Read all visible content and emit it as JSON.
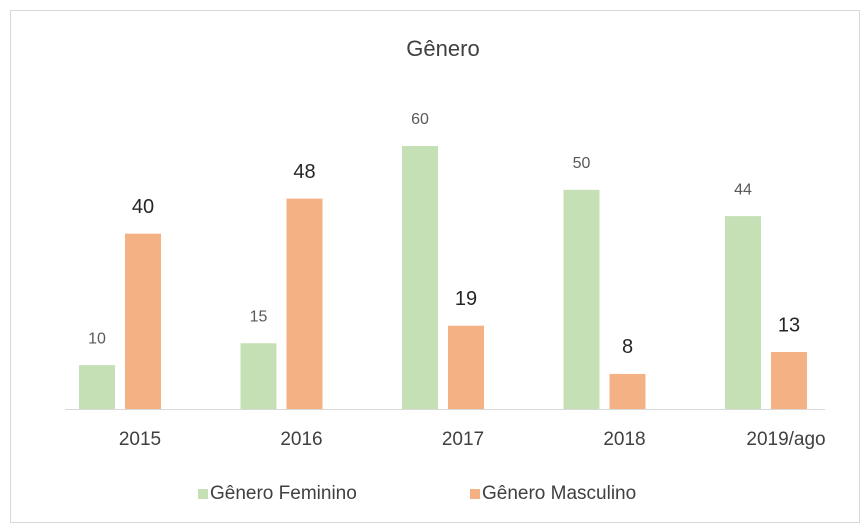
{
  "chart_data": {
    "type": "bar",
    "title": "Gênero",
    "categories": [
      "2015",
      "2016",
      "2017",
      "2018",
      "2019/ago"
    ],
    "series": [
      {
        "name": "Gênero Feminino",
        "color": "#c5e0b4",
        "values": [
          10,
          15,
          60,
          50,
          44
        ]
      },
      {
        "name": "Gênero Masculino",
        "color": "#f4b183",
        "values": [
          40,
          48,
          19,
          8,
          13
        ]
      }
    ]
  }
}
